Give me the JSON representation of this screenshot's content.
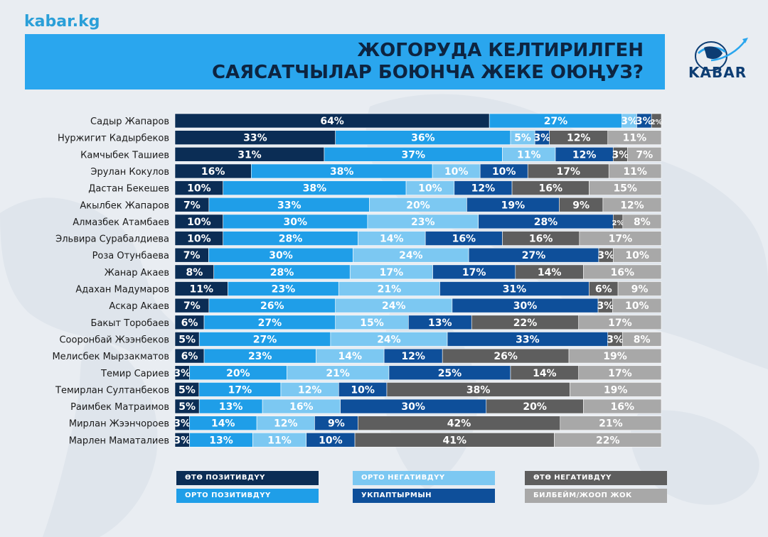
{
  "site": "kabar.kg",
  "title_line1": "ЖОГОРУДА КЕЛТИРИЛГЕН",
  "title_line2": "САЯСАТЧЫЛАР БОЮНЧА ЖЕКЕ ОЮҢУЗ?",
  "brand": "KABAR",
  "chart_data": {
    "type": "bar",
    "orientation": "horizontal",
    "stacked": true,
    "categories": [
      "Садыр Жапаров",
      "Нуржигит Кадырбеков",
      "Камчыбек Ташиев",
      "Эрулан Кокулов",
      "Дастан Бекешев",
      "Акылбек Жапаров",
      "Алмазбек Атамбаев",
      "Эльвира Сурабалдиева",
      "Роза Отунбаева",
      "Жанар Акаев",
      "Адахан Мадумаров",
      "Аскар Акаев",
      "Бакыт Торобаев",
      "Сооронбай Жээнбеков",
      "Мелисбек Мырзакматов",
      "Темир Сариев",
      "Темирлан Султанбеков",
      "Раимбек Матраимов",
      "Мирлан Жээнчороев",
      "Марлен Маматалиев"
    ],
    "series": [
      {
        "name": "ӨТӨ ПОЗИТИВДҮҮ",
        "color": "#0b2d55",
        "values": [
          64,
          33,
          31,
          16,
          10,
          7,
          10,
          10,
          7,
          8,
          11,
          7,
          6,
          5,
          6,
          3,
          5,
          5,
          3,
          3
        ]
      },
      {
        "name": "ОРТО ПОЗИТИВДҮҮ",
        "color": "#1f9ee8",
        "values": [
          27,
          36,
          37,
          38,
          38,
          33,
          30,
          28,
          30,
          28,
          23,
          26,
          27,
          27,
          23,
          20,
          17,
          13,
          14,
          13
        ]
      },
      {
        "name": "ОРТО НЕГАТИВДҮҮ",
        "color": "#7cc8f2",
        "values": [
          3,
          5,
          11,
          10,
          10,
          20,
          23,
          14,
          24,
          17,
          21,
          24,
          15,
          24,
          14,
          21,
          12,
          16,
          12,
          11
        ]
      },
      {
        "name": "УКПАПТЫРМЫН",
        "color": "#0e4f9a",
        "values": [
          3,
          3,
          12,
          10,
          12,
          19,
          28,
          16,
          27,
          17,
          31,
          30,
          13,
          33,
          12,
          25,
          10,
          30,
          9,
          10
        ]
      },
      {
        "name": "ӨТӨ НЕГАТИВДҮҮ",
        "color": "#5e5e5e",
        "values": [
          2,
          12,
          3,
          17,
          16,
          9,
          2,
          16,
          3,
          14,
          6,
          3,
          22,
          3,
          26,
          14,
          38,
          20,
          42,
          41
        ]
      },
      {
        "name": "БИЛБЕЙМ/ЖООП ЖОК",
        "color": "#a8a8a8",
        "values": [
          0,
          11,
          7,
          11,
          15,
          12,
          8,
          17,
          10,
          16,
          9,
          10,
          17,
          8,
          19,
          17,
          19,
          16,
          21,
          22
        ]
      }
    ],
    "legend_order": [
      0,
      2,
      4,
      1,
      3,
      5
    ]
  }
}
